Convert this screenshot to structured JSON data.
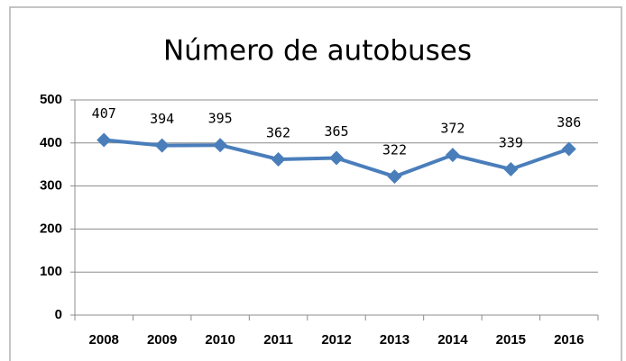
{
  "chart_data": {
    "type": "line",
    "title": "Número de autobuses",
    "categories": [
      "2008",
      "2009",
      "2010",
      "2011",
      "2012",
      "2013",
      "2014",
      "2015",
      "2016"
    ],
    "values": [
      407,
      394,
      395,
      362,
      365,
      322,
      372,
      339,
      386
    ],
    "color": "#4a7ebb",
    "ylim": [
      0,
      500
    ],
    "yticks": [
      0,
      100,
      200,
      300,
      400,
      500
    ],
    "grid": true
  }
}
